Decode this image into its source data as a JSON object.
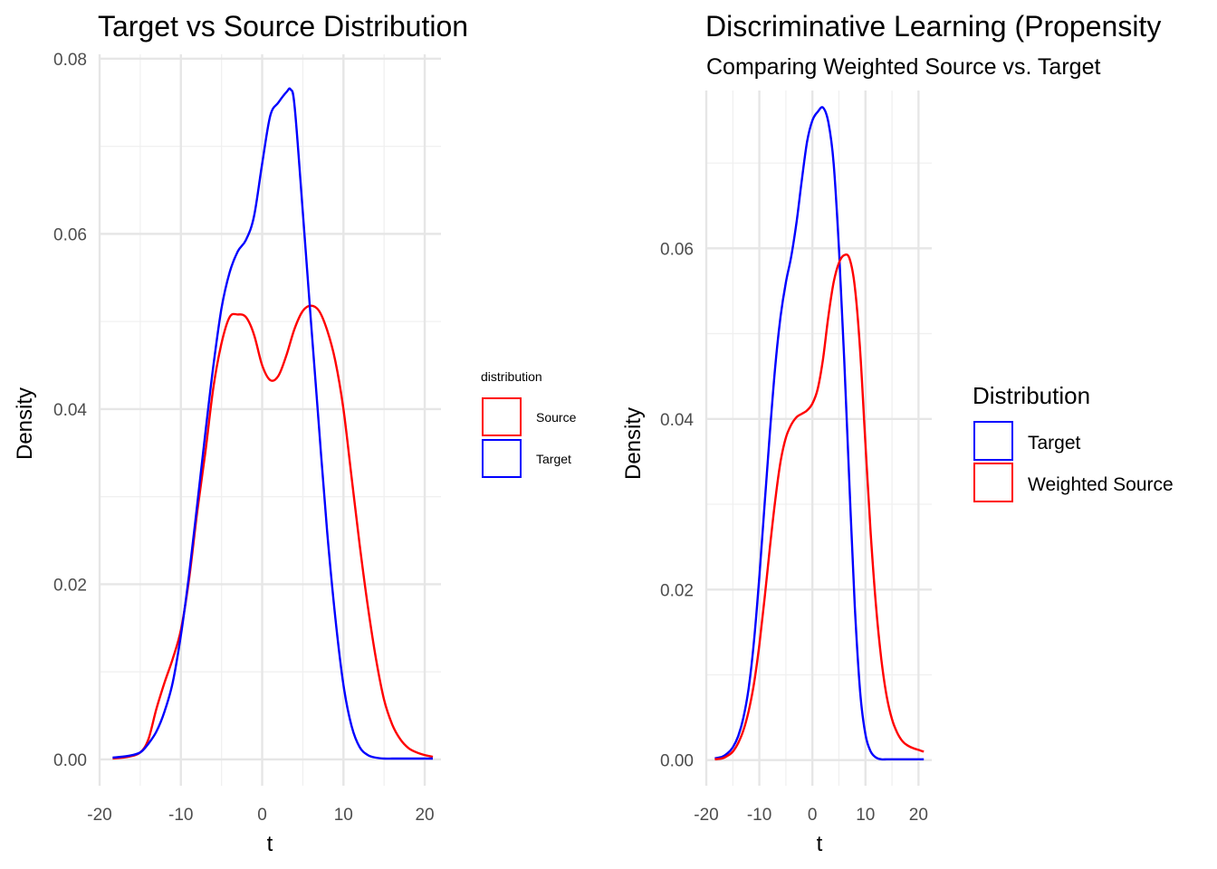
{
  "chart_data": [
    {
      "type": "line",
      "title": "Target vs Source Distribution",
      "subtitle": "",
      "xlabel": "t",
      "ylabel": "Density",
      "xlim": [
        -20,
        22
      ],
      "ylim": [
        -0.003,
        0.0805
      ],
      "x_ticks": [
        -20,
        -10,
        0,
        10,
        20
      ],
      "x_tick_labels": [
        "-20",
        "-10",
        "0",
        "10",
        "20"
      ],
      "y_ticks": [
        0,
        0.02,
        0.04,
        0.06,
        0.08
      ],
      "y_tick_labels": [
        "0.00",
        "0.02",
        "0.04",
        "0.06",
        "0.08"
      ],
      "grid": true,
      "legend": {
        "title": "distribution",
        "placement": "right",
        "entries": [
          {
            "label": "Source",
            "color": "#ff0000"
          },
          {
            "label": "Target",
            "color": "#0000ff"
          }
        ]
      },
      "series": [
        {
          "name": "Source",
          "color": "#ff0000",
          "x": [
            -18.4,
            -16.5,
            -15,
            -14,
            -13,
            -12,
            -11,
            -10,
            -9,
            -8,
            -7,
            -6,
            -5,
            -4,
            -3,
            -2,
            -1,
            0,
            1,
            2,
            3,
            4,
            5,
            6,
            7,
            8,
            9,
            10,
            11,
            12,
            13,
            14,
            15,
            16,
            17,
            18,
            19,
            20,
            21
          ],
          "y": [
            0.0001,
            0.0003,
            0.0008,
            0.0023,
            0.0058,
            0.0088,
            0.0115,
            0.0148,
            0.0205,
            0.0282,
            0.035,
            0.0425,
            0.0475,
            0.0505,
            0.0508,
            0.0505,
            0.0485,
            0.045,
            0.0433,
            0.0438,
            0.0462,
            0.0492,
            0.0512,
            0.0518,
            0.0512,
            0.049,
            0.0455,
            0.04,
            0.0322,
            0.0245,
            0.0175,
            0.0115,
            0.0068,
            0.004,
            0.0023,
            0.0013,
            0.0008,
            0.0005,
            0.0003
          ]
        },
        {
          "name": "Target",
          "color": "#0000ff",
          "x": [
            -18.4,
            -16.5,
            -15,
            -14,
            -13,
            -12,
            -11,
            -10,
            -9,
            -8,
            -7,
            -6,
            -5,
            -4,
            -3,
            -2,
            -1,
            0,
            1,
            2,
            3,
            3.5,
            4,
            5,
            6,
            7,
            8,
            9,
            10,
            11,
            12,
            13,
            14,
            15,
            16,
            17,
            18,
            19,
            20,
            21
          ],
          "y": [
            0.0002,
            0.0004,
            0.0008,
            0.0018,
            0.0032,
            0.0055,
            0.0088,
            0.0142,
            0.021,
            0.029,
            0.0372,
            0.045,
            0.0515,
            0.0556,
            0.058,
            0.0593,
            0.062,
            0.068,
            0.0735,
            0.075,
            0.0762,
            0.0765,
            0.0745,
            0.0625,
            0.05,
            0.0378,
            0.026,
            0.0162,
            0.0085,
            0.0038,
            0.0014,
            0.0005,
            0.0002,
            0.0001,
            0.0001,
            0.0001,
            0.0001,
            0.0001,
            0.0001,
            0.0001
          ]
        }
      ]
    },
    {
      "type": "line",
      "title": "Discriminative Learning (Propensity",
      "subtitle": "Comparing Weighted Source vs. Target",
      "xlabel": "t",
      "ylabel": "Density",
      "xlim": [
        -20,
        22.5
      ],
      "ylim": [
        -0.003,
        0.0785
      ],
      "x_ticks": [
        -20,
        -10,
        0,
        10,
        20
      ],
      "x_tick_labels": [
        "-20",
        "-10",
        "0",
        "10",
        "20"
      ],
      "y_ticks": [
        0,
        0.02,
        0.04,
        0.06
      ],
      "y_tick_labels": [
        "0.00",
        "0.02",
        "0.04",
        "0.06"
      ],
      "grid": true,
      "legend": {
        "title": "Distribution",
        "placement": "right",
        "entries": [
          {
            "label": "Target",
            "color": "#0000ff"
          },
          {
            "label": "Weighted Source",
            "color": "#ff0000"
          }
        ]
      },
      "series": [
        {
          "name": "Target",
          "color": "#0000ff",
          "x": [
            -18.4,
            -17,
            -16,
            -15,
            -14,
            -13,
            -12,
            -11,
            -10,
            -9,
            -8,
            -7,
            -6,
            -5,
            -4,
            -3,
            -2,
            -1,
            0,
            1,
            2,
            3,
            4,
            5,
            6,
            7,
            8,
            9,
            10,
            11,
            12,
            13,
            14,
            15,
            16,
            17,
            18,
            19,
            20,
            21
          ],
          "y": [
            0.0002,
            0.0004,
            0.0008,
            0.0015,
            0.0028,
            0.005,
            0.0085,
            0.014,
            0.0215,
            0.03,
            0.0385,
            0.0462,
            0.052,
            0.056,
            0.059,
            0.063,
            0.068,
            0.0725,
            0.075,
            0.076,
            0.0765,
            0.0748,
            0.07,
            0.06,
            0.047,
            0.032,
            0.018,
            0.008,
            0.003,
            0.001,
            0.0003,
            0.0001,
            0.0001,
            0.0001,
            0.0001,
            0.0001,
            0.0001,
            0.0001,
            0.0001,
            0.0001
          ]
        },
        {
          "name": "Weighted Source",
          "color": "#ff0000",
          "x": [
            -18.4,
            -17,
            -16,
            -15,
            -14,
            -13,
            -12,
            -11,
            -10,
            -9,
            -8,
            -7,
            -6,
            -5,
            -4,
            -3,
            -2,
            -1,
            0,
            1,
            2,
            3,
            4,
            5,
            6,
            7,
            8,
            9,
            10,
            11,
            12,
            13,
            14,
            15,
            16,
            17,
            18,
            19,
            20,
            21
          ],
          "y": [
            0.0001,
            0.0002,
            0.0005,
            0.001,
            0.002,
            0.0035,
            0.0058,
            0.009,
            0.0135,
            0.019,
            0.025,
            0.0305,
            0.035,
            0.0378,
            0.0393,
            0.0402,
            0.0406,
            0.041,
            0.0418,
            0.0435,
            0.047,
            0.052,
            0.056,
            0.0583,
            0.0592,
            0.0588,
            0.0555,
            0.048,
            0.037,
            0.0265,
            0.018,
            0.0118,
            0.0075,
            0.0048,
            0.0032,
            0.0022,
            0.0017,
            0.0014,
            0.0012,
            0.001
          ]
        }
      ]
    }
  ]
}
